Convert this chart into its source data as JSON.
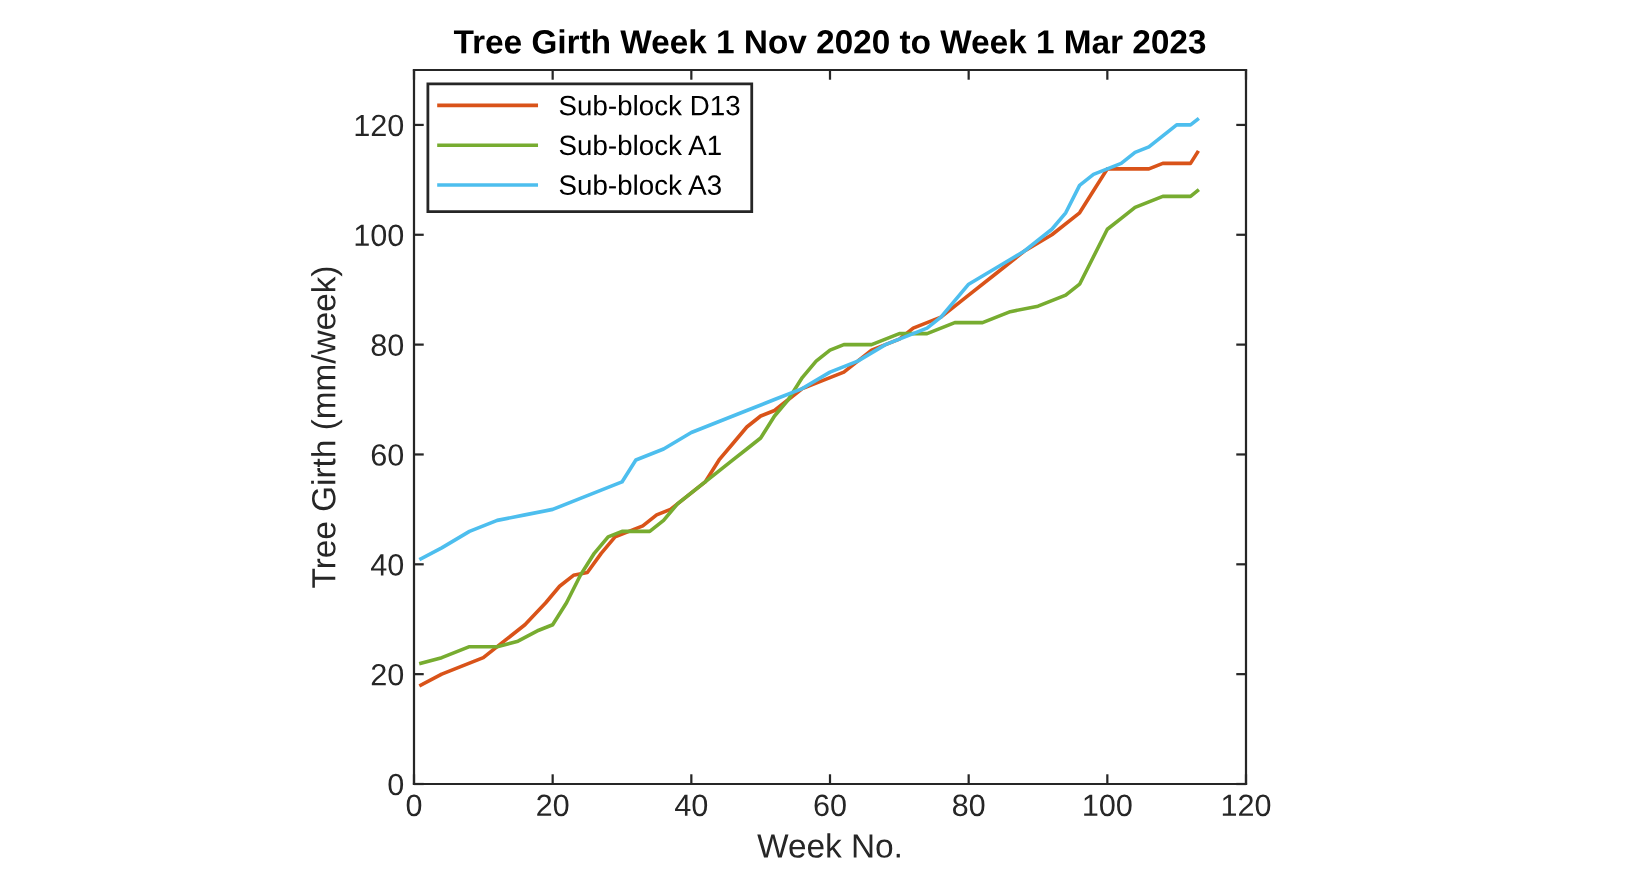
{
  "chart_data": {
    "type": "line",
    "title": "Tree Girth Week 1 Nov 2020 to Week 1 Mar 2023",
    "xlabel": "Week No.",
    "ylabel": "Tree Girth (mm/week)",
    "xlim": [
      0,
      120
    ],
    "ylim": [
      0,
      130
    ],
    "xticks": [
      0,
      20,
      40,
      60,
      80,
      100,
      120
    ],
    "yticks": [
      0,
      20,
      40,
      60,
      80,
      100,
      120
    ],
    "grid": false,
    "legend": "top left",
    "marker": "none",
    "line_style": "solid",
    "series": [
      {
        "name": "Sub-block D13",
        "color": "#d95319",
        "x": [
          1,
          4,
          8,
          10,
          13,
          16,
          19,
          21,
          23,
          25,
          27,
          29,
          31,
          33,
          35,
          37,
          40,
          42,
          44,
          46,
          48,
          50,
          52,
          54,
          56,
          58,
          60,
          62,
          64,
          66,
          68,
          70,
          72,
          74,
          76,
          78,
          80,
          84,
          88,
          92,
          96,
          98,
          100,
          104,
          106,
          108,
          110,
          112,
          113
        ],
        "values": [
          18,
          20,
          22,
          23,
          26,
          29,
          33,
          36,
          38,
          38.5,
          42,
          45,
          46,
          47,
          49,
          50,
          53,
          55,
          59,
          62,
          65,
          67,
          68,
          70,
          72,
          73,
          74,
          75,
          77,
          79,
          80,
          81,
          83,
          84,
          85,
          87,
          89,
          93,
          97,
          100,
          104,
          108,
          112,
          112,
          112,
          113,
          113,
          113,
          115
        ]
      },
      {
        "name": "Sub-block A1",
        "color": "#77ac30",
        "x": [
          1,
          4,
          8,
          12,
          15,
          18,
          20,
          22,
          24,
          26,
          28,
          30,
          34,
          36,
          38,
          40,
          42,
          44,
          46,
          48,
          50,
          52,
          54,
          56,
          58,
          60,
          62,
          66,
          70,
          74,
          78,
          82,
          86,
          90,
          94,
          96,
          98,
          100,
          102,
          104,
          106,
          108,
          112,
          113
        ],
        "values": [
          22,
          23,
          25,
          25,
          26,
          28,
          29,
          33,
          38,
          42,
          45,
          46,
          46,
          48,
          51,
          53,
          55,
          57,
          59,
          61,
          63,
          67,
          70,
          74,
          77,
          79,
          80,
          80,
          82,
          82,
          84,
          84,
          86,
          87,
          89,
          91,
          96,
          101,
          103,
          105,
          106,
          107,
          107,
          108
        ]
      },
      {
        "name": "Sub-block A3",
        "color": "#4dbeee",
        "x": [
          1,
          4,
          8,
          12,
          16,
          20,
          24,
          28,
          30,
          32,
          36,
          40,
          44,
          48,
          52,
          56,
          60,
          64,
          68,
          72,
          74,
          76,
          78,
          80,
          84,
          88,
          92,
          94,
          96,
          98,
          100,
          102,
          104,
          106,
          108,
          110,
          112,
          113
        ],
        "values": [
          41,
          43,
          46,
          48,
          49,
          50,
          52,
          54,
          55,
          59,
          61,
          64,
          66,
          68,
          70,
          72,
          75,
          77,
          80,
          82,
          83,
          85,
          88,
          91,
          94,
          97,
          101,
          104,
          109,
          111,
          112,
          113,
          115,
          116,
          118,
          120,
          120,
          121
        ]
      }
    ]
  }
}
